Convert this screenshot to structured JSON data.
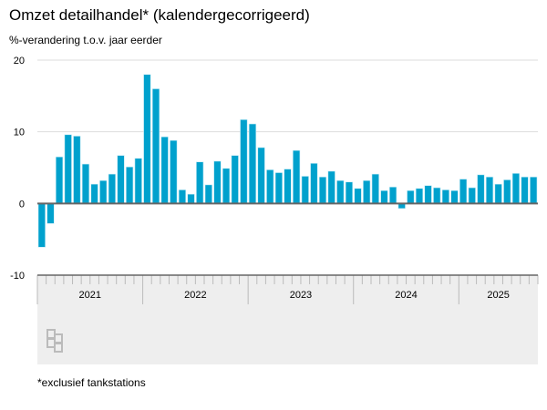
{
  "title": "Omzet detailhandel* (kalendergecorrigeerd)",
  "footnote": "*exclusief tankstations",
  "chart_data": {
    "type": "bar",
    "title": "Omzet detailhandel* (kalendergecorrigeerd)",
    "ylabel": "%-verandering t.o.v. jaar eerder",
    "xlabel": "",
    "ylim": [
      -10,
      20
    ],
    "yticks": [
      -10,
      0,
      10,
      20
    ],
    "grid": true,
    "years": [
      "2021",
      "2022",
      "2023",
      "2024",
      "2025"
    ],
    "bar_color": "#00a1cd",
    "values": [
      -6.1,
      -2.8,
      6.5,
      9.6,
      9.4,
      5.5,
      2.7,
      3.2,
      4.1,
      6.7,
      5.1,
      6.3,
      18.0,
      16.0,
      9.3,
      8.8,
      1.9,
      1.3,
      5.8,
      2.6,
      5.9,
      4.9,
      6.7,
      11.7,
      11.1,
      7.8,
      4.7,
      4.3,
      4.8,
      7.4,
      3.8,
      5.6,
      3.7,
      4.5,
      3.2,
      3.0,
      2.1,
      3.2,
      4.1,
      1.8,
      2.3,
      -0.7,
      1.8,
      2.1,
      2.5,
      2.2,
      1.9,
      1.8,
      3.4,
      2.2,
      4.0,
      3.7,
      2.7,
      3.3,
      4.2,
      3.7,
      3.7
    ]
  }
}
